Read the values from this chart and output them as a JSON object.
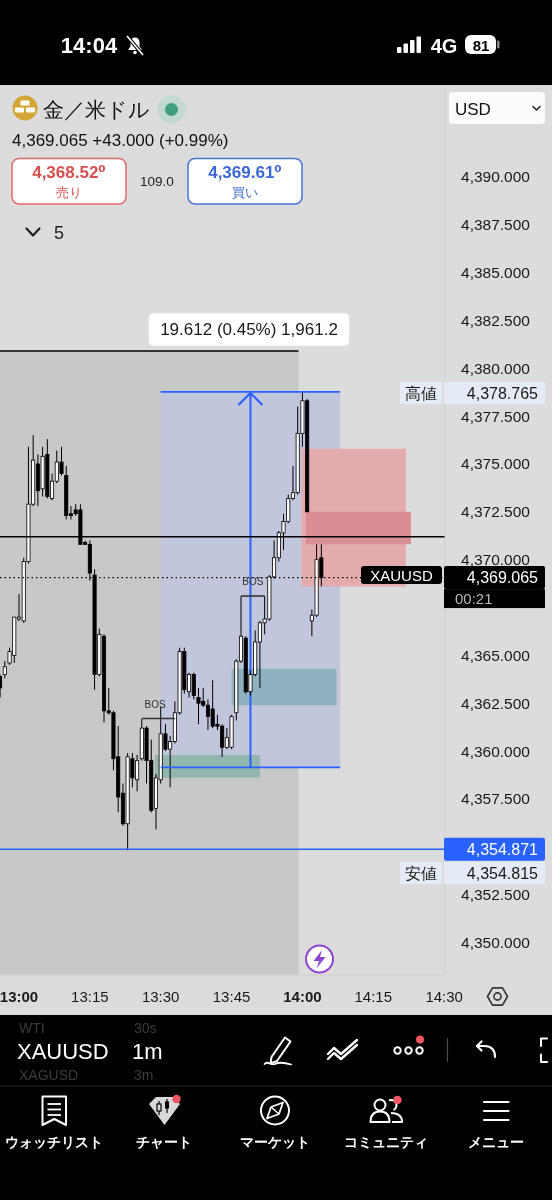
{
  "chart_data": {
    "type": "candlestick",
    "title": "金／米ドル",
    "subtitle": "4,369.065 +43.000 (+0.99%)",
    "x": [
      12.9333,
      12.95,
      12.9667,
      12.9833,
      13.0,
      13.0167,
      13.0333,
      13.05,
      13.0667,
      13.0833,
      13.1,
      13.1167,
      13.1333,
      13.15,
      13.1667,
      13.1833,
      13.2,
      13.2167,
      13.2333,
      13.25,
      13.2667,
      13.2833,
      13.3,
      13.3167,
      13.3333,
      13.35,
      13.3667,
      13.3833,
      13.4,
      13.4167,
      13.4333,
      13.45,
      13.4667,
      13.4833,
      13.5,
      13.5167,
      13.5333,
      13.55,
      13.5667,
      13.5833,
      13.6,
      13.6167,
      13.6333,
      13.65,
      13.6667,
      13.6833,
      13.7,
      13.7167,
      13.7333,
      13.75,
      13.7667,
      13.7833,
      13.8,
      13.8167,
      13.8333,
      13.85,
      13.8667,
      13.8833,
      13.9,
      13.9167,
      13.9333,
      13.95,
      13.9667,
      13.9833,
      14.0,
      14.0167,
      14.0333,
      14.05,
      14.0667
    ],
    "ohlc": [
      [
        4363.9,
        4364.0,
        4362.8,
        4363.3
      ],
      [
        4364.0,
        4364.7,
        4363.8,
        4364.4
      ],
      [
        4364.6,
        4365.4,
        4364.5,
        4365.2
      ],
      [
        4365.0,
        4367.0,
        4364.6,
        4367.0
      ],
      [
        4366.9,
        4368.2,
        4366.8,
        4367.0
      ],
      [
        4366.8,
        4370.1,
        4366.7,
        4369.9
      ],
      [
        4369.9,
        4375.9,
        4369.8,
        4372.9
      ],
      [
        4372.9,
        4376.5,
        4372.8,
        4375.2
      ],
      [
        4375.0,
        4375.5,
        4372.8,
        4373.6
      ],
      [
        4373.7,
        4375.9,
        4373.3,
        4375.4
      ],
      [
        4375.5,
        4376.3,
        4373.2,
        4373.3
      ],
      [
        4373.2,
        4374.5,
        4373.1,
        4374.1
      ],
      [
        4374.1,
        4375.7,
        4374.0,
        4375.1
      ],
      [
        4375.1,
        4375.9,
        4374.4,
        4374.5
      ],
      [
        4374.4,
        4374.9,
        4372.1,
        4372.3
      ],
      [
        4372.4,
        4372.8,
        4372.1,
        4372.3
      ],
      [
        4372.6,
        4372.9,
        4372.3,
        4372.4
      ],
      [
        4372.6,
        4372.9,
        4370.8,
        4370.8
      ],
      [
        4370.9,
        4371.0,
        4370.8,
        4370.8
      ],
      [
        4370.8,
        4371.0,
        4368.9,
        4369.3
      ],
      [
        4369.2,
        4369.5,
        4363.2,
        4364.0
      ],
      [
        4364.0,
        4366.4,
        4363.9,
        4366.1
      ],
      [
        4366.0,
        4366.1,
        4361.5,
        4362.1
      ],
      [
        4362.1,
        4363.3,
        4361.9,
        4362.0
      ],
      [
        4362.0,
        4362.1,
        4359.0,
        4359.6
      ],
      [
        4359.7,
        4361.3,
        4356.8,
        4357.6
      ],
      [
        4357.8,
        4358.3,
        4356.1,
        4356.2
      ],
      [
        4356.2,
        4359.9,
        4354.815,
        4359.7
      ],
      [
        4359.6,
        4359.9,
        4358.1,
        4358.6
      ],
      [
        4358.5,
        4359.8,
        4357.9,
        4359.5
      ],
      [
        4359.6,
        4361.7,
        4359.5,
        4361.2
      ],
      [
        4361.2,
        4361.3,
        4358.3,
        4359.5
      ],
      [
        4359.5,
        4360.6,
        4356.8,
        4356.9
      ],
      [
        4357.0,
        4358.8,
        4355.9,
        4358.6
      ],
      [
        4358.5,
        4362.3,
        4358.3,
        4360.9
      ],
      [
        4360.9,
        4361.4,
        4360.0,
        4360.1
      ],
      [
        4360.1,
        4360.8,
        4358.1,
        4360.5
      ],
      [
        4360.5,
        4362.6,
        4360.4,
        4362.0
      ],
      [
        4362.0,
        4365.4,
        4361.9,
        4365.2
      ],
      [
        4365.2,
        4365.4,
        4363.0,
        4363.2
      ],
      [
        4363.1,
        4364.1,
        4362.8,
        4364.0
      ],
      [
        4364.0,
        4364.1,
        4362.7,
        4362.9
      ],
      [
        4362.8,
        4363.3,
        4361.4,
        4362.5
      ],
      [
        4362.6,
        4363.3,
        4362.3,
        4362.4
      ],
      [
        4362.4,
        4362.7,
        4361.1,
        4361.8
      ],
      [
        4362.2,
        4363.7,
        4361.2,
        4361.3
      ],
      [
        4361.4,
        4361.9,
        4361.1,
        4361.3
      ],
      [
        4361.3,
        4361.4,
        4359.7,
        4360.2
      ],
      [
        4360.2,
        4361.2,
        4360.1,
        4360.7
      ],
      [
        4360.2,
        4361.9,
        4360.1,
        4361.8
      ],
      [
        4362.0,
        4364.8,
        4361.6,
        4364.7
      ],
      [
        4364.7,
        4368.1,
        4364.6,
        4366.0
      ],
      [
        4365.9,
        4366.0,
        4363.0,
        4363.1
      ],
      [
        4363.1,
        4364.2,
        4362.9,
        4364.0
      ],
      [
        4364.0,
        4366.3,
        4363.9,
        4365.7
      ],
      [
        4365.7,
        4366.8,
        4363.3,
        4366.7
      ],
      [
        4366.7,
        4368.1,
        4366.1,
        4366.9
      ],
      [
        4366.9,
        4369.2,
        4366.8,
        4369.1
      ],
      [
        4369.1,
        4371.0,
        4369.0,
        4370.1
      ],
      [
        4370.1,
        4371.5,
        4369.9,
        4371.4
      ],
      [
        4371.4,
        4372.4,
        4370.5,
        4372.0
      ],
      [
        4372.0,
        4373.4,
        4371.9,
        4373.2
      ],
      [
        4373.2,
        4374.9,
        4373.1,
        4373.5
      ],
      [
        4373.5,
        4378.0,
        4373.4,
        4376.6
      ],
      [
        4376.6,
        4378.765,
        4375.9,
        4378.3
      ],
      [
        4378.3,
        4378.4,
        4372.5,
        4372.5
      ],
      [
        4366.8,
        4367.4,
        4366.0,
        4367.1
      ],
      [
        4367.1,
        4370.8,
        4367.0,
        4370.0
      ],
      [
        4370.1,
        4370.8,
        4368.6,
        4369.065
      ]
    ],
    "xlim": [
      12.933,
      14.503
    ],
    "xticks": [
      {
        "value": 13,
        "label": "13:00"
      },
      {
        "value": 13.25,
        "label": "13:15"
      },
      {
        "value": 13.5,
        "label": "13:30"
      },
      {
        "value": 13.75,
        "label": "13:45"
      },
      {
        "value": 14,
        "label": "14:00"
      },
      {
        "value": 14.25,
        "label": "14:15"
      },
      {
        "value": 14.5,
        "label": "14:30"
      }
    ],
    "ylim": [
      4348.3,
      4394.8
    ],
    "yticks": [
      {
        "value": 4350,
        "label": "4,350.000"
      },
      {
        "value": 4352.5,
        "label": "4,352.500"
      },
      {
        "value": 4357.5,
        "label": "4,357.500"
      },
      {
        "value": 4360,
        "label": "4,360.000"
      },
      {
        "value": 4362.5,
        "label": "4,362.500"
      },
      {
        "value": 4365,
        "label": "4,365.000"
      },
      {
        "value": 4370,
        "label": "4,370.000"
      },
      {
        "value": 4372.5,
        "label": "4,372.500"
      },
      {
        "value": 4375,
        "label": "4,375.000"
      },
      {
        "value": 4377.5,
        "label": "4,377.500"
      },
      {
        "value": 4380,
        "label": "4,380.000"
      },
      {
        "value": 4382.5,
        "label": "4,382.500"
      },
      {
        "value": 4385,
        "label": "4,385.000"
      },
      {
        "value": 4387.5,
        "label": "4,387.500"
      },
      {
        "value": 4390,
        "label": "4,390.000"
      }
    ],
    "series": [
      {
        "type": "line",
        "x": [
          12.933,
          13.986
        ],
        "values": [
          null,
          null
        ],
        "lower": [
          4348.3,
          4348.3
        ],
        "upper": [
          4380.9,
          4380.9
        ],
        "color": "#c8c8c8"
      },
      {
        "type": "line",
        "x": [
          12.933,
          13.986
        ],
        "values": [
          4380.9,
          4380.9
        ],
        "color": "#000000"
      },
      {
        "type": "line",
        "x": [
          13.5,
          14.1333
        ],
        "values": [
          null,
          null
        ],
        "lower": [
          4359.15,
          4359.15
        ],
        "upper": [
          4378.765,
          4378.765
        ],
        "color": "#c1c6dc"
      },
      {
        "type": "line",
        "x": [
          13.5,
          14.1333
        ],
        "values": [
          4378.765,
          4378.765
        ],
        "color": "#2962ff"
      },
      {
        "type": "line",
        "x": [
          13.5,
          14.1333
        ],
        "values": [
          4359.15,
          4359.15
        ],
        "color": "#2962ff"
      },
      {
        "type": "line",
        "x": [
          13.48,
          13.85
        ],
        "values": [
          null,
          null
        ],
        "lower": [
          4358.6,
          4358.6
        ],
        "upper": [
          4359.8,
          4359.8
        ],
        "color": "#93b6ae"
      },
      {
        "type": "line",
        "x": [
          13.75,
          14.12
        ],
        "values": [
          null,
          null
        ],
        "lower": [
          4362.4,
          4362.4
        ],
        "upper": [
          4364.3,
          4364.3
        ],
        "color": "#8eb2c0"
      },
      {
        "type": "line",
        "x": [
          13.997,
          14.365
        ],
        "values": [
          null,
          null
        ],
        "lower": [
          4368.6,
          4368.6
        ],
        "upper": [
          4375.8,
          4375.8
        ],
        "color": "#e4abaf"
      },
      {
        "type": "line",
        "x": [
          14.012,
          14.383
        ],
        "values": [
          null,
          null
        ],
        "lower": [
          4370.8,
          4370.8
        ],
        "upper": [
          4372.5,
          4372.5
        ],
        "color": "#db8d94"
      },
      {
        "type": "line",
        "x": [
          13.4333,
          13.55
        ],
        "values": [
          4361.7,
          4361.7
        ],
        "color": "#333333"
      },
      {
        "type": "line",
        "x": [
          13.7833,
          13.8667
        ],
        "values": [
          4368.1,
          4368.1
        ],
        "color": "#333333"
      }
    ],
    "ref_lines": [
      {
        "axis": "y",
        "value": 4369.065,
        "label": "4,369.065",
        "color": "#000000",
        "line_style": "dotted"
      },
      {
        "axis": "y",
        "value": 4354.871,
        "label": "4,354.871",
        "color": "#2962ff",
        "line_style": "solid"
      },
      {
        "axis": "y",
        "value": 4371.2,
        "color": "#000000",
        "line_style": "solid"
      }
    ],
    "annotations": [
      "14:04",
      "4G",
      "81",
      "4,368.52⁰",
      "売り",
      "109.0",
      "4,369.61⁰",
      "買い",
      "5",
      "USD",
      "XAUUSD",
      "00:21",
      "高値",
      "4,378.765",
      "安値",
      "4,354.815",
      "XAUUSD",
      "1m",
      "WTI",
      "30s",
      "XAGUSD",
      "3m",
      "ウォッチリスト",
      "チャート",
      "マーケット",
      "コミュニティ",
      "メニュー",
      "19.612 (0.45%) 1,961.2",
      {
        "text": "BOS",
        "x": 13.48,
        "y": 4361.7
      },
      {
        "text": "BOS",
        "x": 13.825,
        "y": 4368.1
      }
    ]
  }
}
